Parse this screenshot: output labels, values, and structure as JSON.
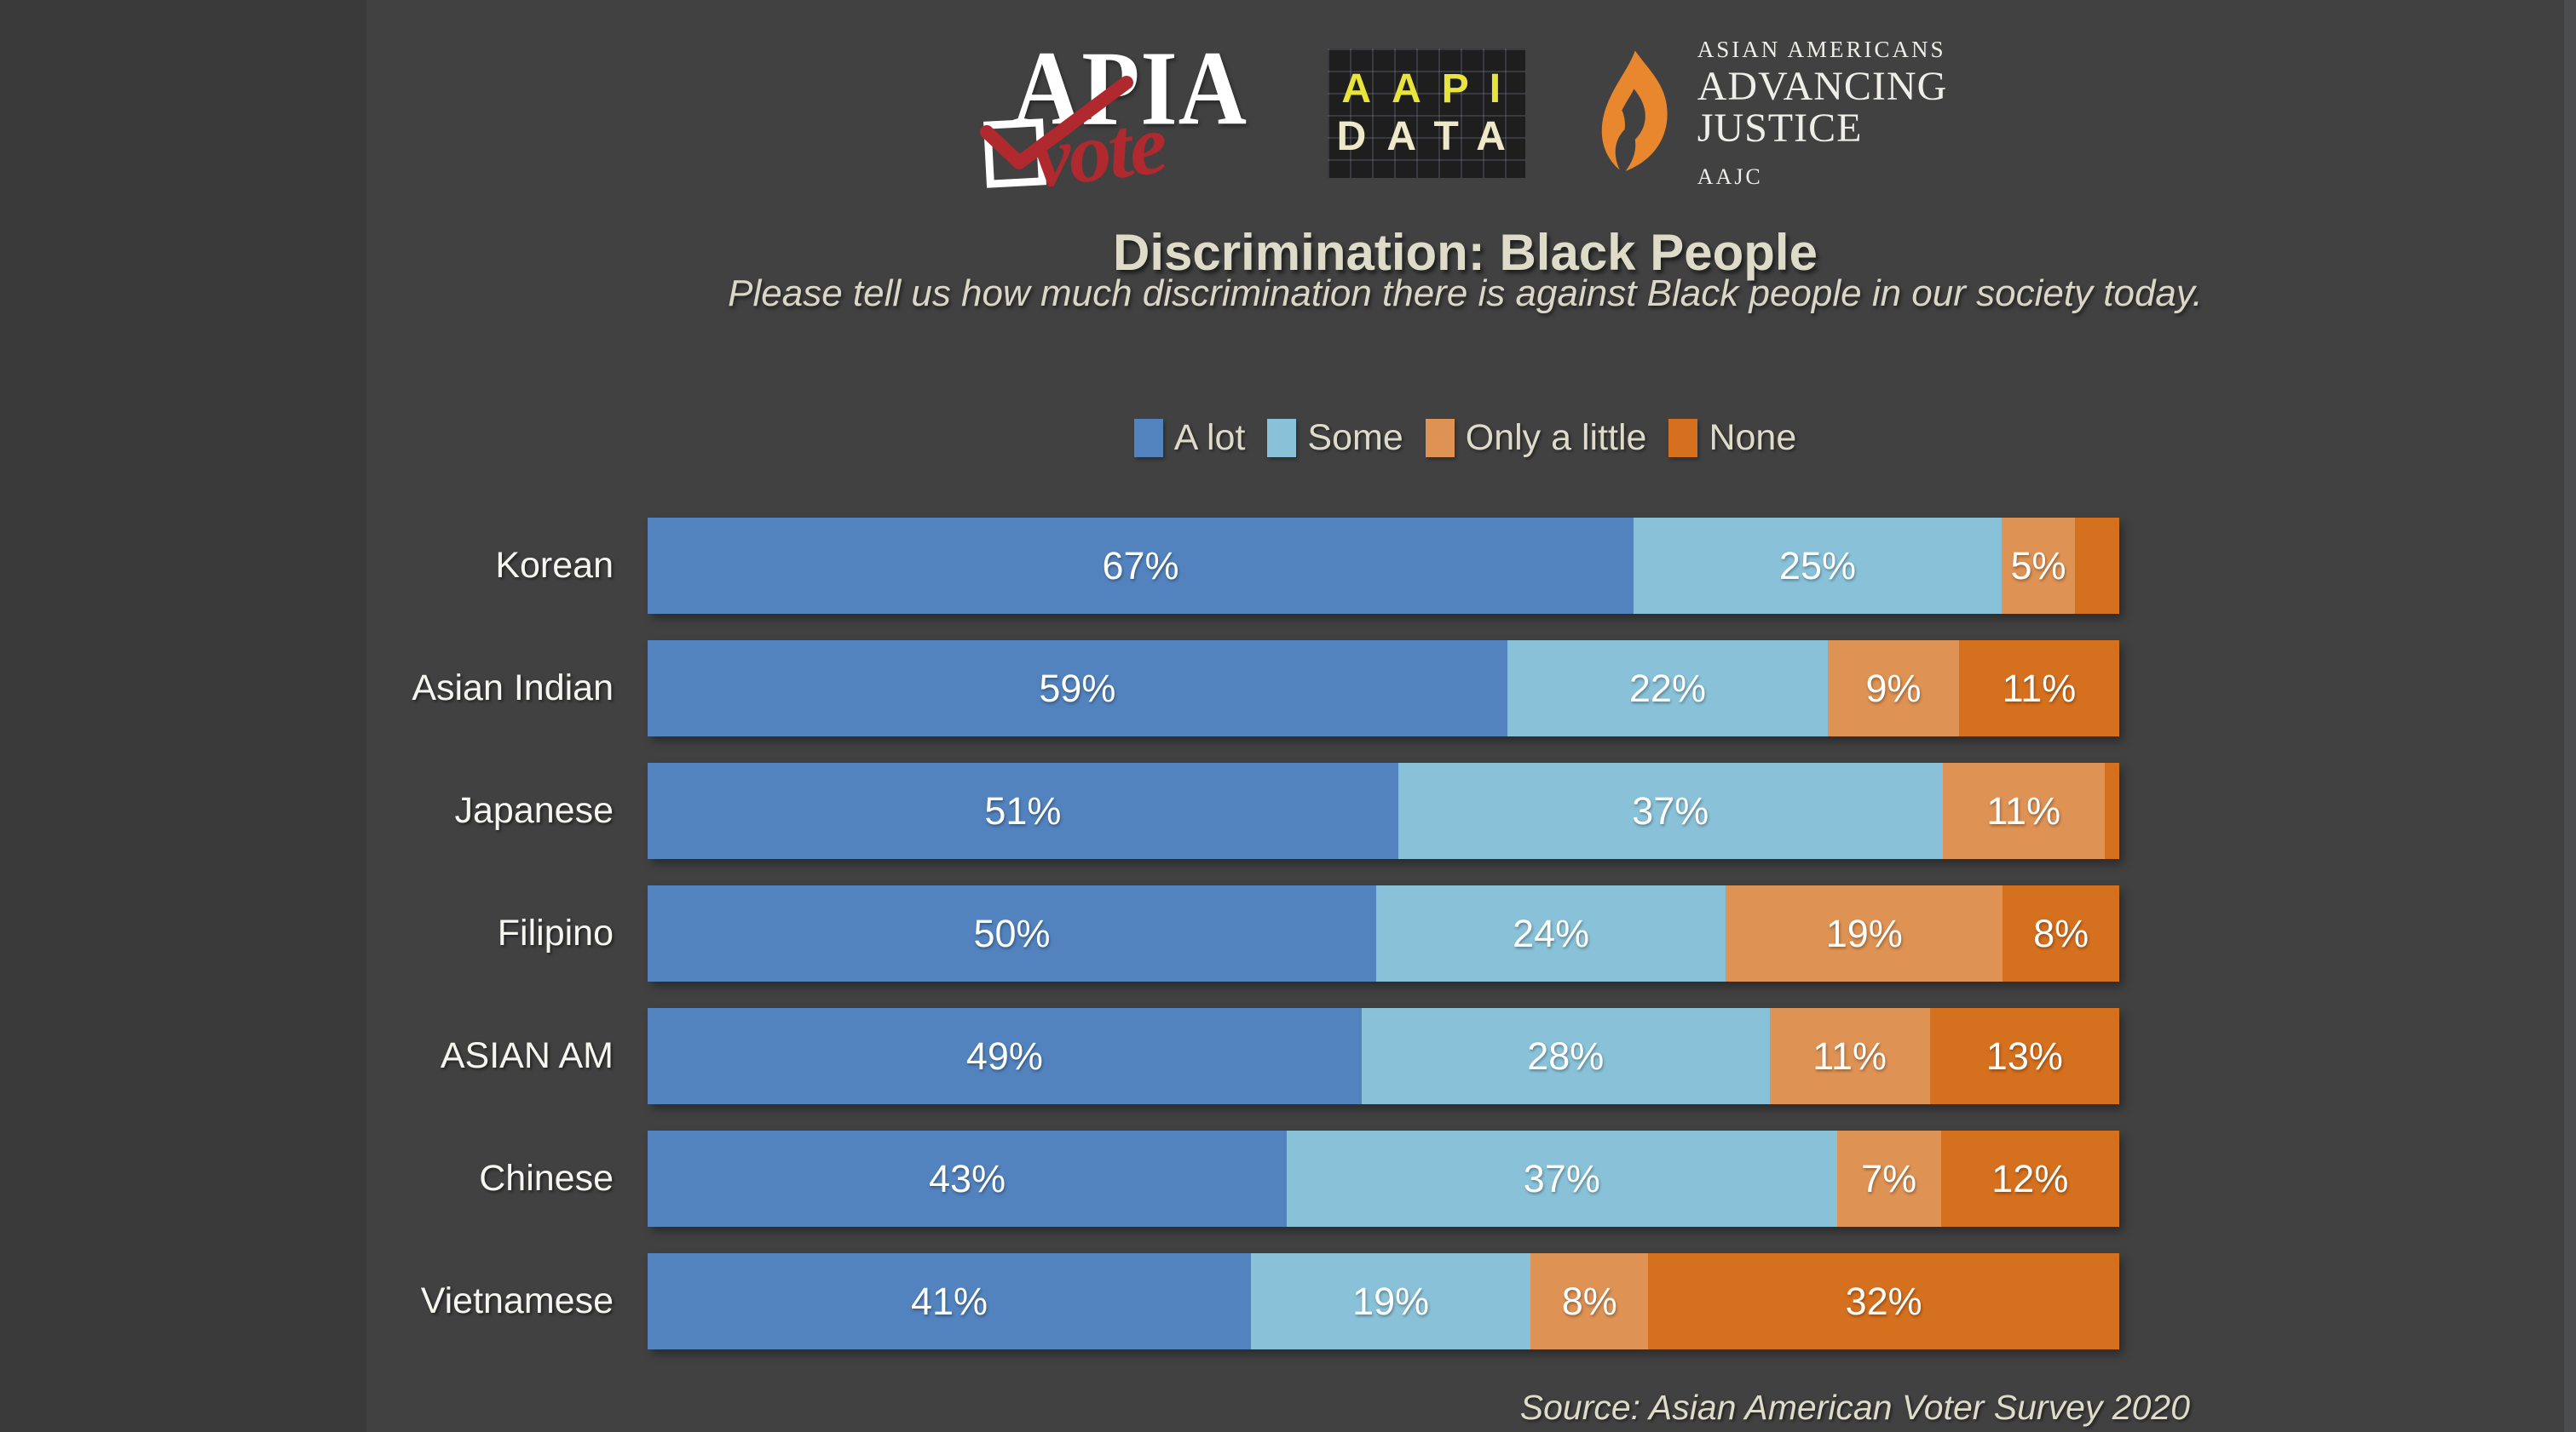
{
  "header": {
    "title": "Discrimination: Black People",
    "subtitle": "Please tell us how much discrimination there is against Black people in our society today."
  },
  "logos": {
    "apia_vote": {
      "word": "APIA",
      "script": "vote"
    },
    "aapi_data": {
      "line1": "AAPI",
      "line2": "DATA"
    },
    "advancing_justice": {
      "top": "ASIAN AMERICANS",
      "big1": "ADVANCING",
      "big2": "JUSTICE",
      "sub": "AAJC"
    }
  },
  "colors": {
    "a_lot": "#5283BE",
    "some": "#89C2D8",
    "only_a_little": "#DE9254",
    "none": "#D5701F",
    "canvas_background": "#3a3a3b",
    "slide_background": "#414142",
    "cream_text": "#DEDBC9",
    "apia_red": "#B0292E",
    "aapi_yellow": "#E9E43D",
    "flame_orange": "#E8872E"
  },
  "chart_data": {
    "type": "bar",
    "stacked": true,
    "orientation": "horizontal",
    "title": "Discrimination: Black People",
    "subtitle": "Please tell us how much discrimination there is against Black people in our society today.",
    "legend_position": "top-center",
    "grid": false,
    "xlim": [
      0,
      100
    ],
    "value_suffix": "%",
    "categories": [
      "Korean",
      "Asian Indian",
      "Japanese",
      "Filipino",
      "ASIAN AM",
      "Chinese",
      "Vietnamese"
    ],
    "series": [
      {
        "name": "A lot",
        "color": "#5283BE",
        "values": [
          67,
          59,
          51,
          50,
          49,
          43,
          41
        ],
        "labels": [
          "67%",
          "59%",
          "51%",
          "50%",
          "49%",
          "43%",
          "41%"
        ]
      },
      {
        "name": "Some",
        "color": "#89C2D8",
        "values": [
          25,
          22,
          37,
          24,
          28,
          37,
          19
        ],
        "labels": [
          "25%",
          "22%",
          "37%",
          "24%",
          "28%",
          "37%",
          "19%"
        ]
      },
      {
        "name": "Only a little",
        "color": "#DE9254",
        "values": [
          5,
          9,
          11,
          19,
          11,
          7,
          8
        ],
        "labels": [
          "5%",
          "9%",
          "11%",
          "19%",
          "11%",
          "7%",
          "8%"
        ]
      },
      {
        "name": "None",
        "color": "#D5701F",
        "values": [
          3,
          11,
          1,
          8,
          13,
          12,
          32
        ],
        "labels": [
          "",
          "11%",
          "",
          "8%",
          "13%",
          "12%",
          "32%"
        ]
      }
    ]
  },
  "footer": {
    "source": "Source: Asian American Voter Survey 2020"
  }
}
